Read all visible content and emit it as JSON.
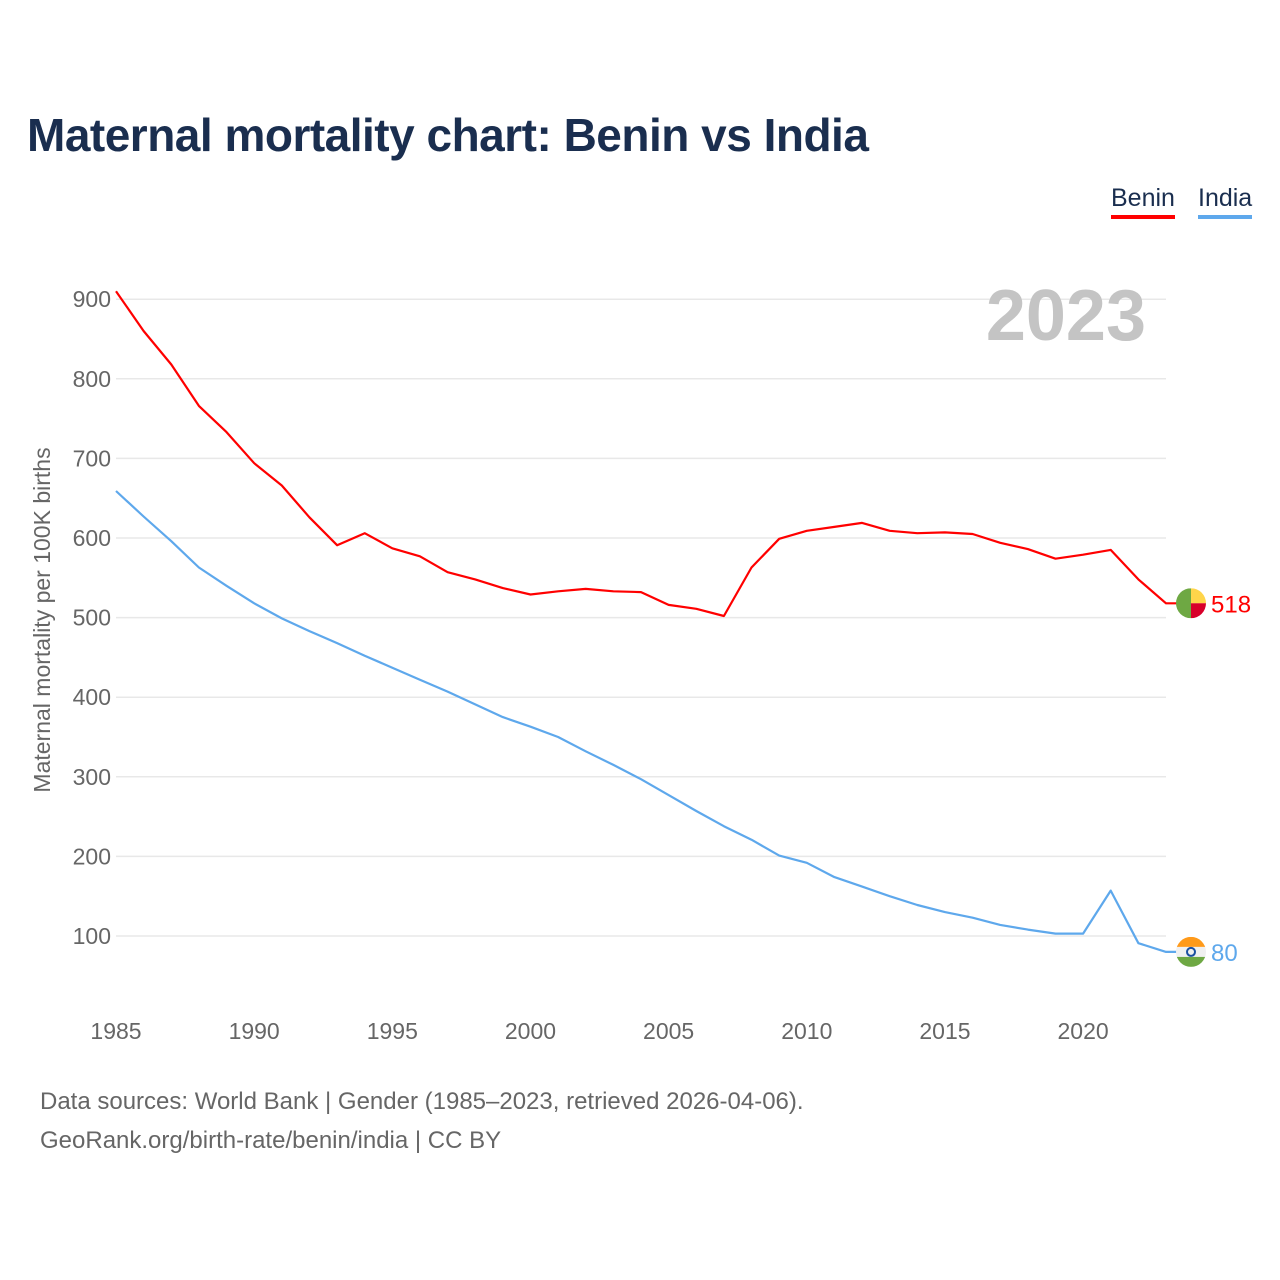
{
  "chart_data": {
    "type": "line",
    "title": "Maternal mortality chart: Benin vs India",
    "ylabel": "Maternal mortality per 100K births",
    "xlabel": "",
    "year_label": "2023",
    "ylim": [
      0,
      950
    ],
    "xlim": [
      1985,
      2023
    ],
    "yticks": [
      100,
      200,
      300,
      400,
      500,
      600,
      700,
      800,
      900
    ],
    "xticks": [
      1985,
      1990,
      1995,
      2000,
      2005,
      2010,
      2015,
      2020
    ],
    "grid": true,
    "legend_position": "top-right",
    "x": [
      1985,
      1986,
      1987,
      1988,
      1989,
      1990,
      1991,
      1992,
      1993,
      1994,
      1995,
      1996,
      1997,
      1998,
      1999,
      2000,
      2001,
      2002,
      2003,
      2004,
      2005,
      2006,
      2007,
      2008,
      2009,
      2010,
      2011,
      2012,
      2013,
      2014,
      2015,
      2016,
      2017,
      2018,
      2019,
      2020,
      2021,
      2022,
      2023
    ],
    "series": [
      {
        "name": "Benin",
        "color": "#ff0000",
        "end_label": "518",
        "values": [
          910,
          860,
          818,
          766,
          733,
          694,
          666,
          626,
          591,
          606,
          587,
          577,
          557,
          548,
          537,
          529,
          533,
          536,
          533,
          532,
          516,
          511,
          502,
          563,
          599,
          609,
          614,
          619,
          609,
          606,
          607,
          605,
          594,
          586,
          574,
          579,
          585,
          548,
          518
        ]
      },
      {
        "name": "India",
        "color": "#5ea8ec",
        "end_label": "80",
        "values": [
          659,
          627,
          596,
          563,
          540,
          518,
          499,
          483,
          468,
          452,
          437,
          422,
          407,
          391,
          375,
          363,
          350,
          332,
          315,
          297,
          277,
          257,
          238,
          221,
          201,
          192,
          174,
          162,
          150,
          139,
          130,
          123,
          114,
          108,
          103,
          103,
          157,
          91,
          80
        ]
      }
    ]
  },
  "footer": {
    "sources": "Data sources: World Bank | Gender (1985–2023, retrieved 2026-04-06).",
    "credit": "GeoRank.org/birth-rate/benin/india | CC BY"
  }
}
